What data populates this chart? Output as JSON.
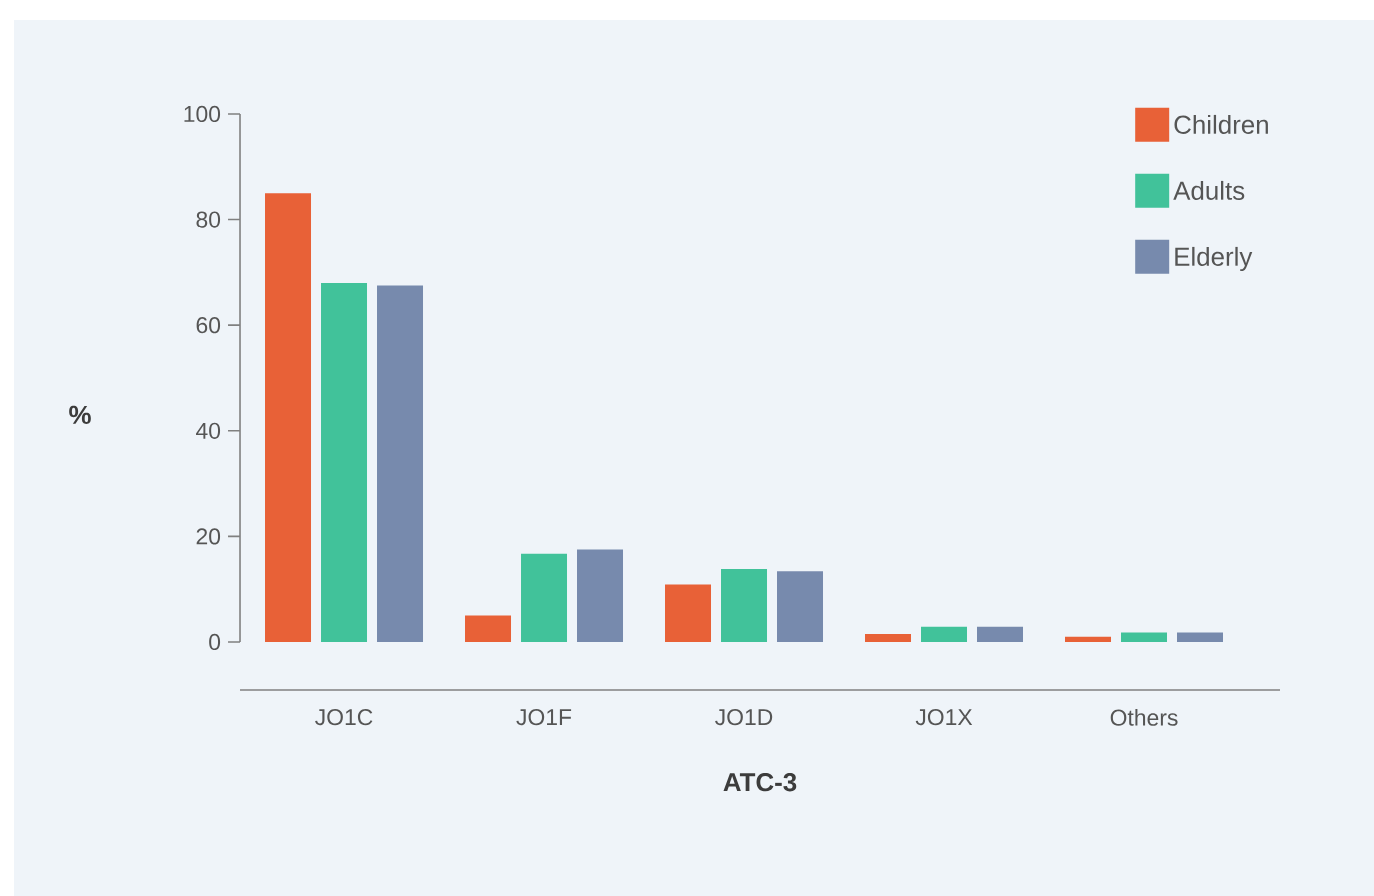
{
  "chart_data": {
    "type": "bar",
    "xlabel": "ATC-3",
    "ylabel": "%",
    "categories": [
      "JO1C",
      "JO1F",
      "JO1D",
      "JO1X",
      "Others"
    ],
    "ylim": [
      0,
      100
    ],
    "yticks": [
      0,
      20,
      40,
      60,
      80,
      100
    ],
    "legend": "top right",
    "grid": false,
    "series": [
      {
        "name": "Children",
        "color": "#e86137",
        "values": [
          85,
          5,
          10.9,
          1.5,
          1
        ]
      },
      {
        "name": "Adults",
        "color": "#41c29a",
        "values": [
          68,
          16.7,
          13.8,
          2.9,
          1.8
        ]
      },
      {
        "name": "Elderly",
        "color": "#778aad",
        "values": [
          67.5,
          17.5,
          13.4,
          2.9,
          1.8
        ]
      }
    ]
  }
}
